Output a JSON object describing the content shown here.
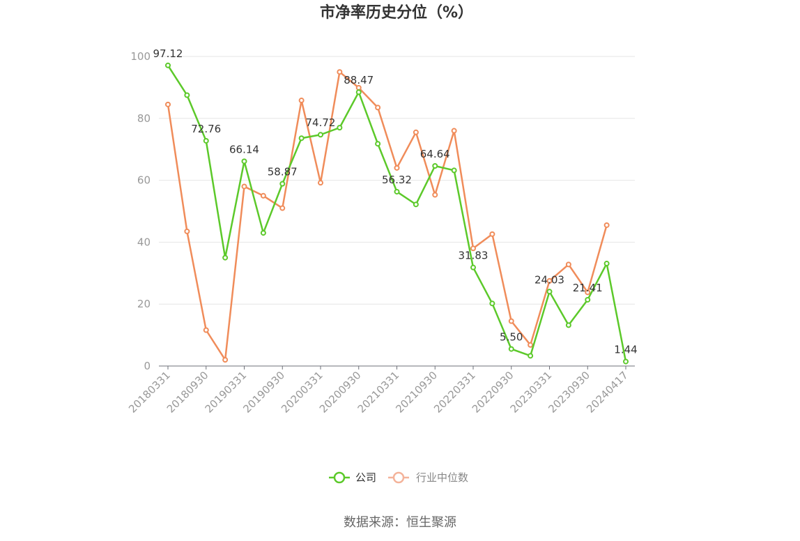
{
  "chart_data": {
    "type": "line",
    "title": "市净率历史分位（%）",
    "xlabel": "",
    "ylabel": "",
    "ylim": [
      0,
      100
    ],
    "yticks": [
      0,
      20,
      40,
      60,
      80,
      100
    ],
    "x": [
      "20180331",
      "20180630",
      "20180930",
      "20181231",
      "20190331",
      "20190630",
      "20190930",
      "20191231",
      "20200331",
      "20200630",
      "20200930",
      "20201231",
      "20210331",
      "20210630",
      "20210930",
      "20211231",
      "20220331",
      "20220630",
      "20220930",
      "20221231",
      "20230331",
      "20230630",
      "20230930",
      "20231231",
      "20240417"
    ],
    "xtick_labels": [
      "20180331",
      "20180930",
      "20190331",
      "20190930",
      "20200331",
      "20200930",
      "20210331",
      "20210930",
      "20220331",
      "20220930",
      "20230331",
      "20230930",
      "20240417"
    ],
    "grid": true,
    "legend_position": "bottom",
    "series": [
      {
        "name": "公司",
        "color": "#5cc92a",
        "values": [
          97.12,
          87.5,
          72.76,
          35.0,
          66.14,
          43.0,
          58.87,
          73.6,
          74.72,
          77.0,
          88.47,
          71.8,
          56.32,
          52.2,
          64.64,
          63.2,
          31.83,
          20.2,
          5.5,
          3.3,
          24.03,
          13.2,
          21.41,
          33.1,
          1.44
        ],
        "labels": {
          "0": "97.12",
          "2": "72.76",
          "4": "66.14",
          "6": "58.87",
          "8": "74.72",
          "10": "88.47",
          "12": "56.32",
          "14": "64.64",
          "16": "31.83",
          "18": "5.50",
          "20": "24.03",
          "22": "21.41",
          "24": "1.44"
        }
      },
      {
        "name": "行业中位数",
        "color": "#f08c5a",
        "values": [
          84.5,
          43.5,
          11.6,
          2.0,
          58.0,
          55.0,
          51.0,
          85.8,
          59.2,
          95.0,
          89.9,
          83.5,
          64.0,
          75.5,
          55.3,
          76.0,
          38.0,
          42.6,
          14.5,
          6.8,
          27.5,
          32.8,
          23.8,
          45.5,
          null
        ]
      }
    ]
  },
  "source_text": "数据来源：恒生聚源"
}
